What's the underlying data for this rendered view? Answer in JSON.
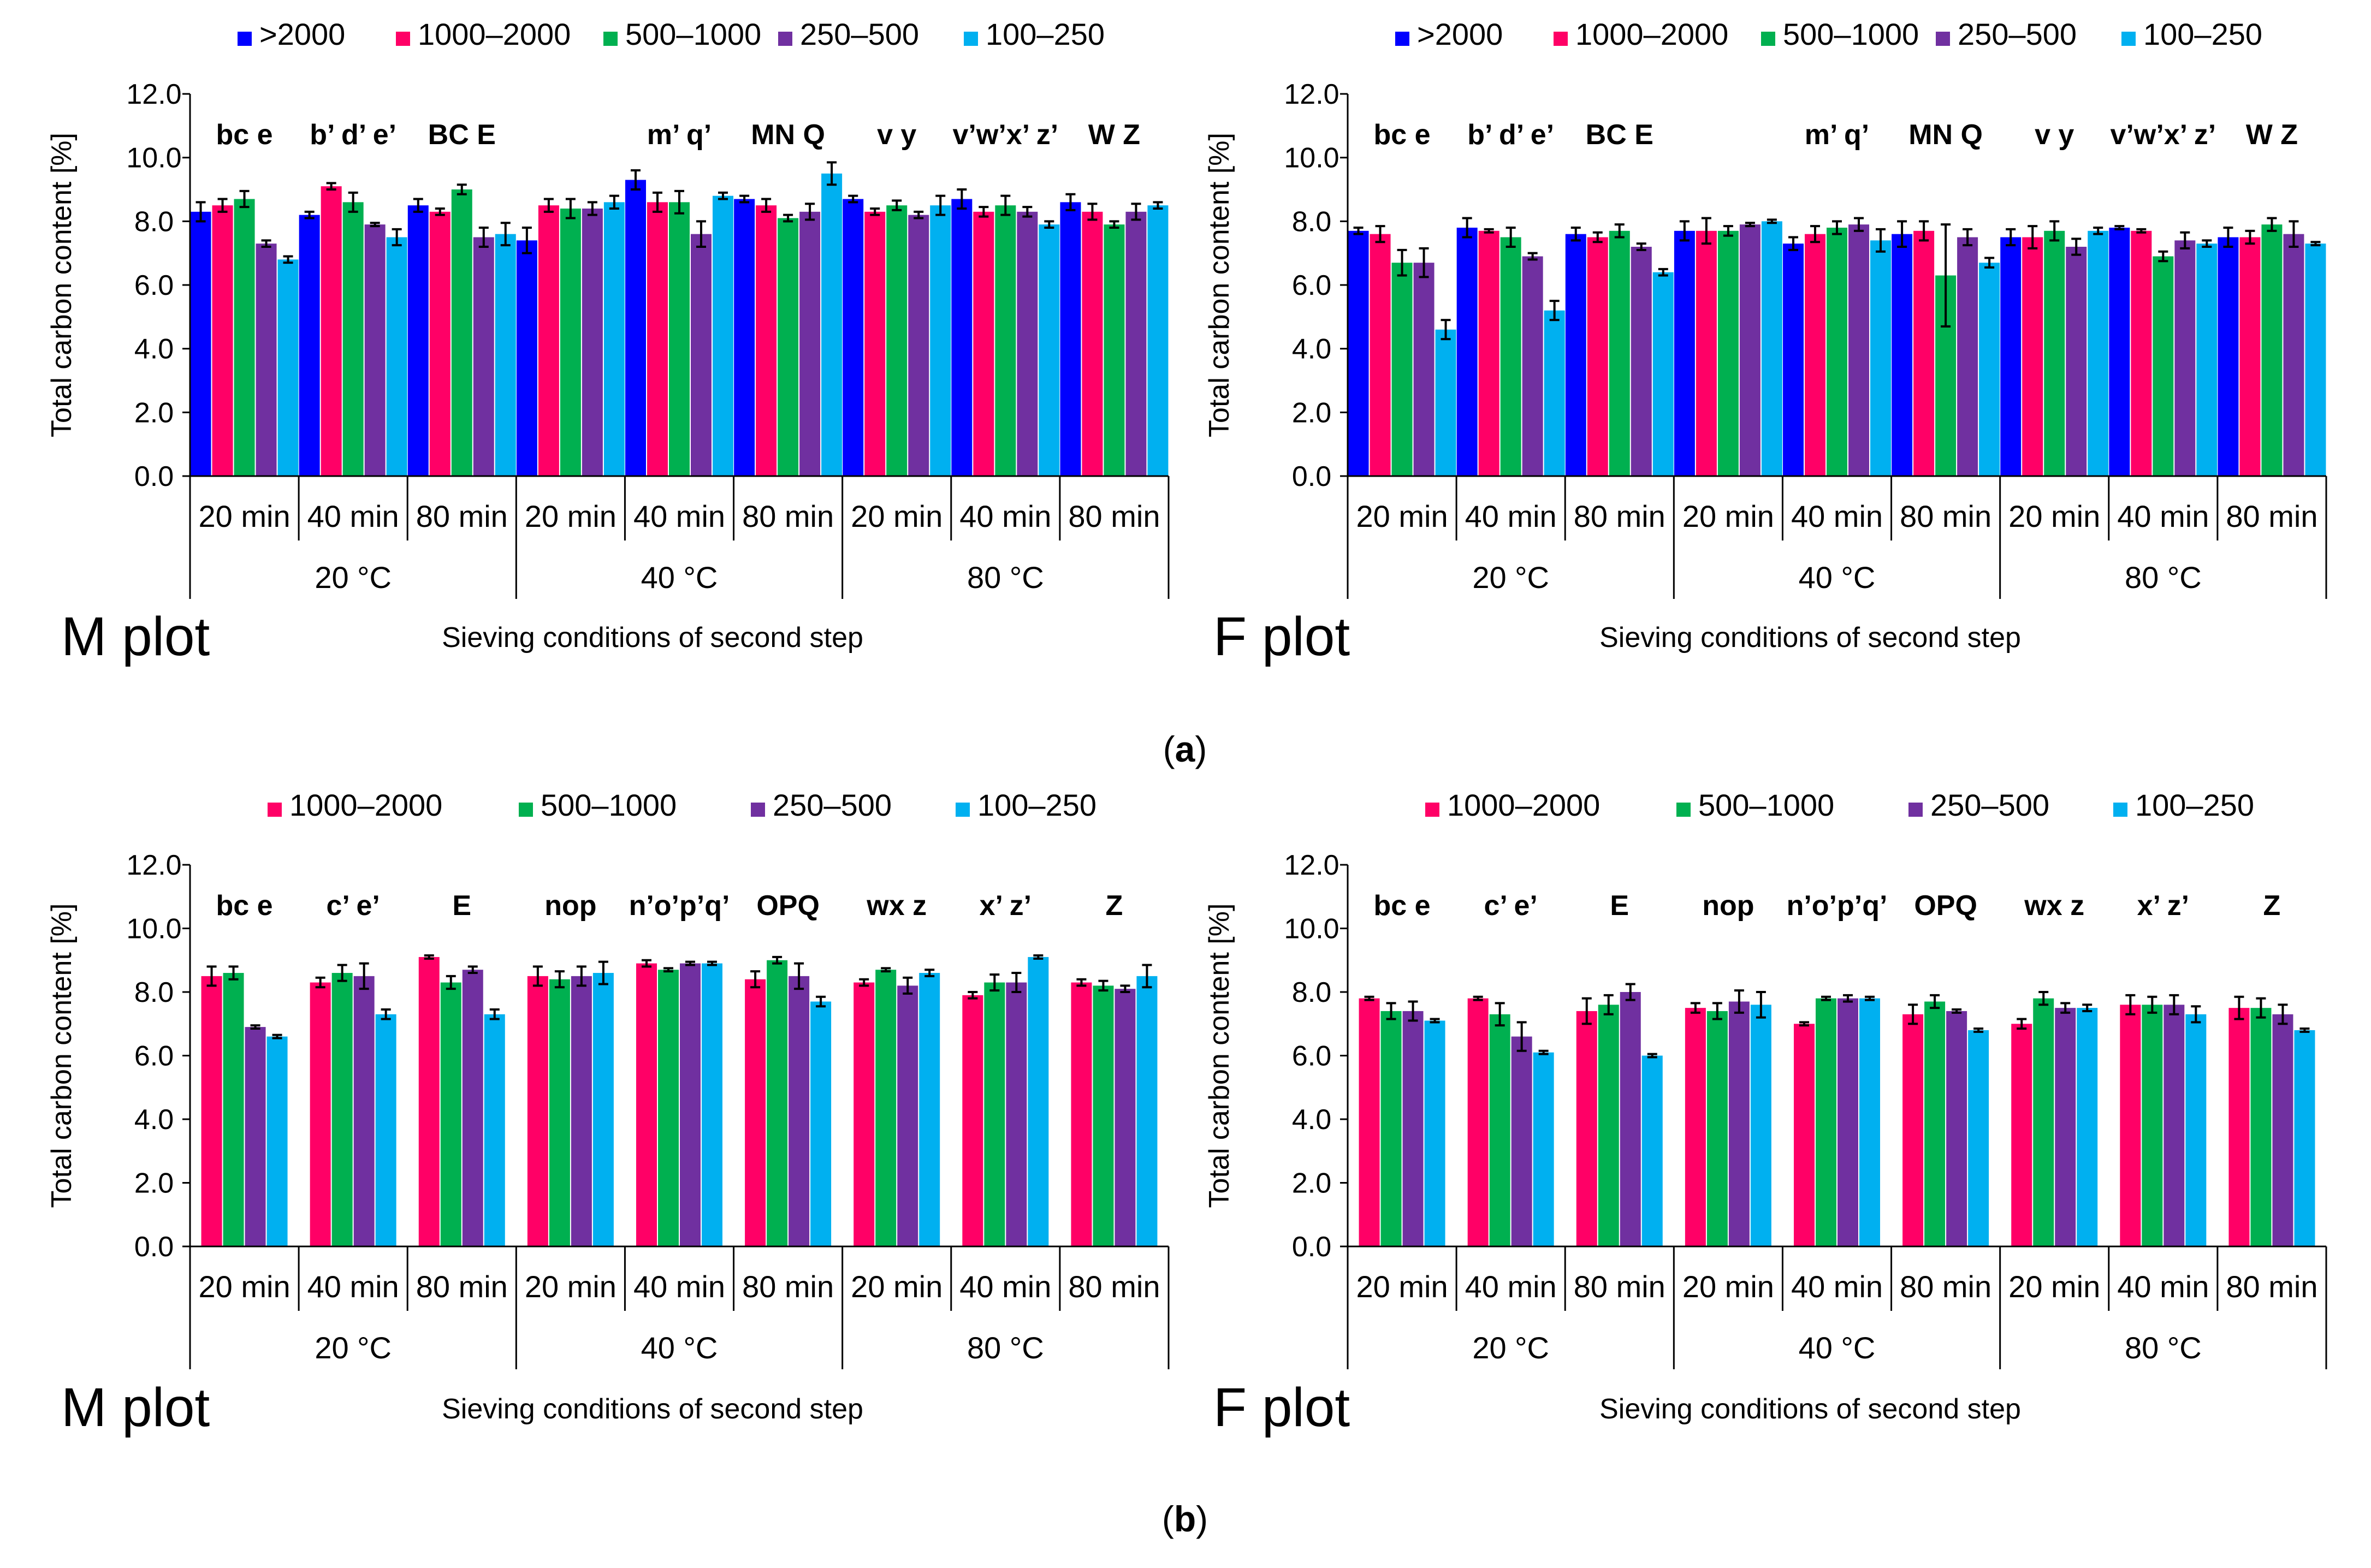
{
  "chart_data": {
    "ylabel": "Total carbon content [%]",
    "xlabel": "Sieving conditions of second step",
    "ylim": [
      0,
      12
    ],
    "yticks": [
      "0.0",
      "2.0",
      "4.0",
      "6.0",
      "8.0",
      "10.0",
      "12.0"
    ],
    "times": [
      "20 min",
      "40 min",
      "80 min",
      "20 min",
      "40 min",
      "80 min",
      "20 min",
      "40 min",
      "80 min"
    ],
    "temperatures": [
      "20 °C",
      "40 °C",
      "80 °C"
    ],
    "panel_labels": [
      {
        "open": "(",
        "letter": "a",
        "close": ")"
      },
      {
        "open": "(",
        "letter": "b",
        "close": ")"
      }
    ],
    "colors": {
      ">2000": "#0000FF",
      "1000–2000": "#FF0066",
      "500–1000": "#00B050",
      "250–500": "#7030A0",
      "100–250": "#00B0F0"
    },
    "charts": [
      {
        "id": "a-M",
        "type": "bar",
        "plot_name": "M plot",
        "legend": [
          ">2000",
          "1000–2000",
          "500–1000",
          "250–500",
          "100–250"
        ],
        "annotations": [
          "bc  e",
          "b’ d’ e’",
          "BC  E",
          "",
          "m’   q’",
          "MN   Q",
          "v   y",
          "v’w’x’ z’",
          "W  Z"
        ],
        "series": [
          {
            "name": ">2000",
            "values": [
              8.3,
              8.2,
              8.5,
              7.4,
              9.3,
              8.7,
              8.7,
              8.7,
              8.6
            ],
            "errors": [
              0.3,
              0.1,
              0.2,
              0.4,
              0.3,
              0.1,
              0.1,
              0.3,
              0.25
            ]
          },
          {
            "name": "1000–2000",
            "values": [
              8.5,
              9.1,
              8.3,
              8.5,
              8.6,
              8.5,
              8.3,
              8.3,
              8.3
            ],
            "errors": [
              0.2,
              0.1,
              0.1,
              0.2,
              0.3,
              0.2,
              0.1,
              0.15,
              0.25
            ]
          },
          {
            "name": "500–1000",
            "values": [
              8.7,
              8.6,
              9.0,
              8.4,
              8.6,
              8.1,
              8.5,
              8.5,
              7.9
            ],
            "errors": [
              0.25,
              0.3,
              0.15,
              0.3,
              0.35,
              0.1,
              0.15,
              0.3,
              0.1
            ]
          },
          {
            "name": "250–500",
            "values": [
              7.3,
              7.9,
              7.5,
              8.4,
              7.6,
              8.3,
              8.2,
              8.3,
              8.3
            ],
            "errors": [
              0.1,
              0.05,
              0.3,
              0.2,
              0.4,
              0.25,
              0.1,
              0.15,
              0.25
            ]
          },
          {
            "name": "100–250",
            "values": [
              6.8,
              7.5,
              7.6,
              8.6,
              8.8,
              9.5,
              8.5,
              7.9,
              8.5
            ],
            "errors": [
              0.1,
              0.25,
              0.35,
              0.2,
              0.1,
              0.35,
              0.3,
              0.1,
              0.1
            ]
          }
        ]
      },
      {
        "id": "a-F",
        "type": "bar",
        "plot_name": "F plot",
        "legend": [
          ">2000",
          "1000–2000",
          "500–1000",
          "250–500",
          "100–250"
        ],
        "annotations": [
          "bc  e",
          "b’ d’ e’",
          "BC  E",
          "",
          "m’   q’",
          "MN   Q",
          "v   y",
          "v’w’x’ z’",
          "W  Z"
        ],
        "series": [
          {
            "name": ">2000",
            "values": [
              7.7,
              7.8,
              7.6,
              7.7,
              7.3,
              7.6,
              7.5,
              7.8,
              7.5
            ],
            "errors": [
              0.1,
              0.3,
              0.2,
              0.3,
              0.2,
              0.4,
              0.25,
              0.05,
              0.3
            ]
          },
          {
            "name": "1000–2000",
            "values": [
              7.6,
              7.7,
              7.5,
              7.7,
              7.6,
              7.7,
              7.5,
              7.7,
              7.5
            ],
            "errors": [
              0.25,
              0.05,
              0.15,
              0.4,
              0.25,
              0.3,
              0.35,
              0.05,
              0.2
            ]
          },
          {
            "name": "500–1000",
            "values": [
              6.7,
              7.5,
              7.7,
              7.7,
              7.8,
              6.3,
              7.7,
              6.9,
              7.9
            ],
            "errors": [
              0.4,
              0.3,
              0.2,
              0.15,
              0.2,
              1.6,
              0.3,
              0.15,
              0.2
            ]
          },
          {
            "name": "250–500",
            "values": [
              6.7,
              6.9,
              7.2,
              7.9,
              7.9,
              7.5,
              7.2,
              7.4,
              7.6
            ],
            "errors": [
              0.45,
              0.1,
              0.1,
              0.05,
              0.2,
              0.25,
              0.25,
              0.25,
              0.4
            ]
          },
          {
            "name": "100–250",
            "values": [
              4.6,
              5.2,
              6.4,
              8.0,
              7.4,
              6.7,
              7.7,
              7.3,
              7.3
            ],
            "errors": [
              0.3,
              0.3,
              0.1,
              0.05,
              0.35,
              0.15,
              0.1,
              0.1,
              0.05
            ]
          }
        ]
      },
      {
        "id": "b-M",
        "type": "bar",
        "plot_name": "M plot",
        "legend": [
          "1000–2000",
          "500–1000",
          "250–500",
          "100–250"
        ],
        "annotations": [
          "bc  e",
          "c’  e’",
          "E",
          "nop",
          "n’o’p’q’",
          "OPQ",
          "wx   z",
          "x’  z’",
          "Z"
        ],
        "series": [
          {
            "name": "1000–2000",
            "values": [
              8.5,
              8.3,
              9.1,
              8.5,
              8.9,
              8.4,
              8.3,
              7.9,
              8.3
            ],
            "errors": [
              0.3,
              0.15,
              0.05,
              0.3,
              0.1,
              0.25,
              0.1,
              0.1,
              0.1
            ]
          },
          {
            "name": "500–1000",
            "values": [
              8.6,
              8.6,
              8.3,
              8.4,
              8.7,
              9.0,
              8.7,
              8.3,
              8.2
            ],
            "errors": [
              0.2,
              0.25,
              0.2,
              0.25,
              0.05,
              0.1,
              0.05,
              0.25,
              0.15
            ]
          },
          {
            "name": "250–500",
            "values": [
              6.9,
              8.5,
              8.7,
              8.5,
              8.9,
              8.5,
              8.2,
              8.3,
              8.1
            ],
            "errors": [
              0.05,
              0.4,
              0.1,
              0.3,
              0.05,
              0.4,
              0.25,
              0.3,
              0.1
            ]
          },
          {
            "name": "100–250",
            "values": [
              6.6,
              7.3,
              7.3,
              8.6,
              8.9,
              7.7,
              8.6,
              9.1,
              8.5
            ],
            "errors": [
              0.05,
              0.15,
              0.15,
              0.35,
              0.05,
              0.15,
              0.1,
              0.05,
              0.35
            ]
          }
        ]
      },
      {
        "id": "b-F",
        "type": "bar",
        "plot_name": "F plot",
        "legend": [
          "1000–2000",
          "500–1000",
          "250–500",
          "100–250"
        ],
        "annotations": [
          "bc  e",
          "c’  e’",
          "E",
          "nop",
          "n’o’p’q’",
          "OPQ",
          "wx   z",
          "x’  z’",
          "Z"
        ],
        "series": [
          {
            "name": "1000–2000",
            "values": [
              7.8,
              7.8,
              7.4,
              7.5,
              7.0,
              7.3,
              7.0,
              7.6,
              7.5
            ],
            "errors": [
              0.05,
              0.05,
              0.4,
              0.15,
              0.05,
              0.3,
              0.15,
              0.3,
              0.35
            ]
          },
          {
            "name": "500–1000",
            "values": [
              7.4,
              7.3,
              7.6,
              7.4,
              7.8,
              7.7,
              7.8,
              7.6,
              7.5
            ],
            "errors": [
              0.25,
              0.35,
              0.3,
              0.25,
              0.05,
              0.2,
              0.2,
              0.25,
              0.3
            ]
          },
          {
            "name": "250–500",
            "values": [
              7.4,
              6.6,
              8.0,
              7.7,
              7.8,
              7.4,
              7.5,
              7.6,
              7.3
            ],
            "errors": [
              0.3,
              0.45,
              0.25,
              0.35,
              0.1,
              0.05,
              0.15,
              0.3,
              0.3
            ]
          },
          {
            "name": "100–250",
            "values": [
              7.1,
              6.1,
              6.0,
              7.6,
              7.8,
              6.8,
              7.5,
              7.3,
              6.8
            ],
            "errors": [
              0.05,
              0.05,
              0.05,
              0.4,
              0.05,
              0.05,
              0.1,
              0.25,
              0.05
            ]
          }
        ]
      }
    ]
  }
}
